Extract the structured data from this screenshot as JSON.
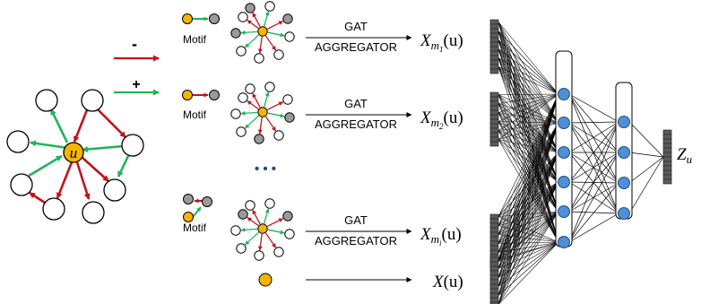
{
  "legend": {
    "negative_sign": "-",
    "positive_sign": "+"
  },
  "center_node_label": "u",
  "motif_label": "Motif",
  "aggregator": {
    "line1": "GAT",
    "line2": "AGGREGATOR"
  },
  "ellipsis": "• • •",
  "embeddings": {
    "m1": {
      "base": "X",
      "sub": "m",
      "subsub": "1",
      "arg": "(u)"
    },
    "m2": {
      "base": "X",
      "sub": "m",
      "subsub": "2",
      "arg": "(u)"
    },
    "mi": {
      "base": "X",
      "sub": "m",
      "subsub": "i",
      "arg": "(u)"
    },
    "raw": {
      "base": "X",
      "arg": "(u)"
    },
    "out": {
      "base": "Z",
      "sub": "u"
    }
  },
  "colors": {
    "positive_edge": "#22b35a",
    "negative_edge": "#c0141c",
    "center_node": "#f7b500",
    "grey_node": "#9a9a9a",
    "hidden_node": "#4f8fd6",
    "vector_cell": "#5a5a5a"
  }
}
